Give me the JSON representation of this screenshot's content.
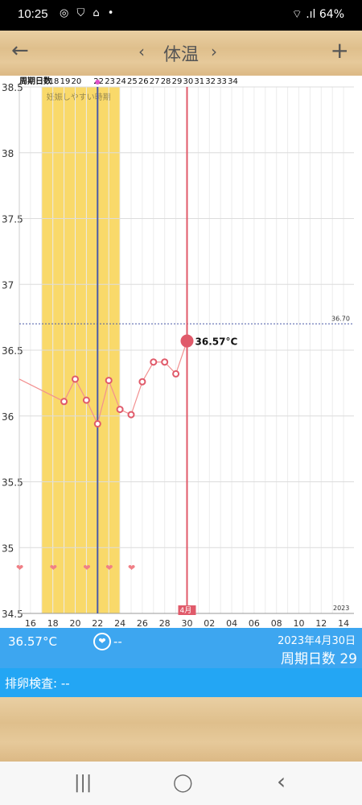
{
  "status_bar": {
    "time": "10:25",
    "icons": "◎ ⛉ ⌂ •",
    "signal": "⌔ .ıl",
    "battery": "64%"
  },
  "header": {
    "title": "体温",
    "back_icon": "←",
    "prev_icon": "‹",
    "next_icon": "›",
    "add_icon": "+"
  },
  "chart_data": {
    "type": "line",
    "ylabel": "",
    "xlabel": "",
    "y_ticks": [
      "38.5",
      "38",
      "37.5",
      "37",
      "36.5",
      "36",
      "35.5",
      "35",
      "34.5"
    ],
    "ylim": [
      34.5,
      38.5
    ],
    "x_ticks": [
      "16",
      "18",
      "20",
      "22",
      "24",
      "26",
      "28",
      "30",
      "02",
      "04",
      "06",
      "08",
      "10",
      "12",
      "14"
    ],
    "cycle_label": "周期日数",
    "cycle_days": [
      "18",
      "19",
      "20",
      "",
      "22",
      "23",
      "24",
      "25",
      "26",
      "27",
      "28",
      "29",
      "30",
      "31",
      "32",
      "33",
      "34"
    ],
    "fertile_label": "妊娠しやすい時期",
    "fertile_window": [
      17,
      24
    ],
    "reference_line": {
      "value": 36.7,
      "label": "36.70"
    },
    "selected": {
      "day": 30,
      "value": 36.57,
      "label": "36.57°C",
      "month_label": "4月"
    },
    "blue_marker_day": 22,
    "year_label": "2023",
    "series": [
      {
        "points": [
          {
            "day": 19,
            "temp": 36.11
          },
          {
            "day": 20,
            "temp": 36.28
          },
          {
            "day": 21,
            "temp": 36.12
          },
          {
            "day": 22,
            "temp": 35.94
          },
          {
            "day": 23,
            "temp": 36.27
          },
          {
            "day": 24,
            "temp": 36.05
          },
          {
            "day": 25,
            "temp": 36.01
          },
          {
            "day": 26,
            "temp": 36.26
          },
          {
            "day": 27,
            "temp": 36.41
          },
          {
            "day": 28,
            "temp": 36.41
          },
          {
            "day": 29,
            "temp": 36.32
          },
          {
            "day": 30,
            "temp": 36.57
          }
        ]
      }
    ],
    "heart_days": [
      15,
      18,
      21,
      23,
      25
    ],
    "colors": {
      "fertile": "#f9d96a",
      "line": "#f29090",
      "selected": "#e05a6a",
      "blue": "#4a5aa8",
      "hearts": "#f07f86"
    }
  },
  "info_bar": {
    "temp": "36.57°C",
    "heart": "❤",
    "dash": "--",
    "date": "2023年4月30日",
    "cycle": "周期日数 29"
  },
  "ovulation": {
    "text": "排卵検査: --"
  },
  "nav": {
    "recent": "|||",
    "home": "◯",
    "back": "‹"
  }
}
